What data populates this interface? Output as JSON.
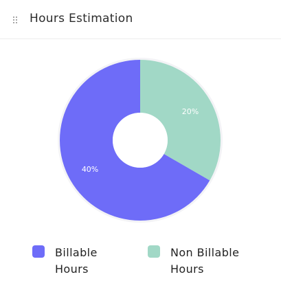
{
  "header": {
    "title": "Hours Estimation",
    "drag_icon": "drag-handle-icon"
  },
  "chart_data": {
    "type": "pie",
    "donut": true,
    "title": "",
    "slices": [
      {
        "name": "Billable Hours",
        "value": 40,
        "label": "40%",
        "color": "#6e6cf8"
      },
      {
        "name": "Non Billable Hours",
        "value": 20,
        "label": "20%",
        "color": "#a1d8c6"
      }
    ],
    "legend": {
      "placement": "bottom",
      "items": [
        {
          "line1": "Billable",
          "line2": "Hours",
          "color": "#6e6cf8"
        },
        {
          "line1": "Non Billable",
          "line2": "Hours",
          "color": "#a1d8c6"
        }
      ]
    }
  }
}
